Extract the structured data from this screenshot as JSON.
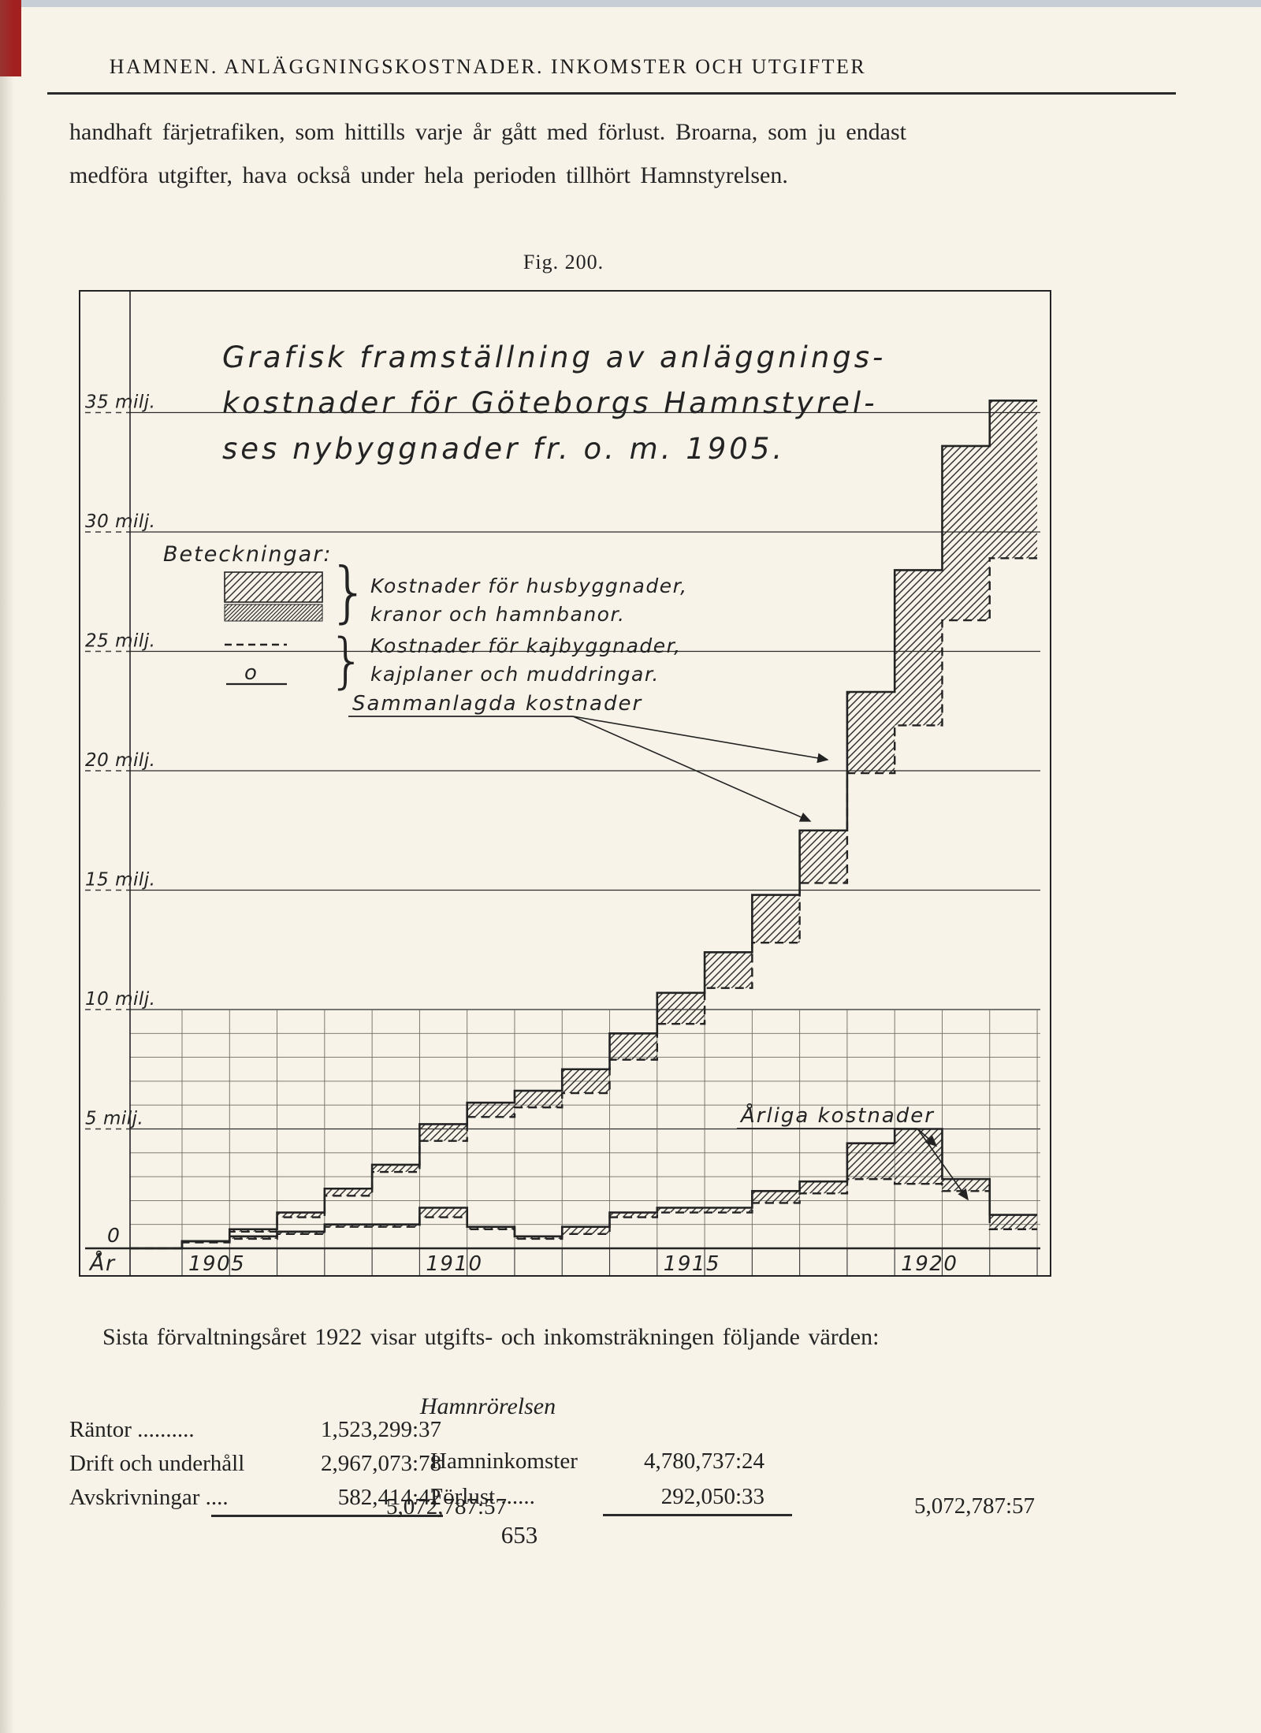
{
  "colors": {
    "paper": "#f7f3e8",
    "ink": "#232323",
    "scan_red_stripe": "#a22020",
    "scan_top_sliver": "#c7ced6"
  },
  "page": {
    "header": "HAMNEN.  ANLÄGGNINGSKOSTNADER.  INKOMSTER OCH UTGIFTER",
    "paragraph": "handhaft färjetrafiken, som hittills varje år gått med förlust.  Broarna, som ju endast medföra utgifter, hava också under hela perioden tillhört Hamnstyrelsen.",
    "fig_caption": "Fig.  200.",
    "closing_paragraph": "Sista förvaltningsåret 1922 visar utgifts- och inkomsträkningen följande värden:",
    "section_heading": "Hamnrörelsen",
    "page_number": "653"
  },
  "financials": {
    "left": {
      "rows": [
        {
          "label": "Räntor ..........",
          "value": "1,523,299:37"
        },
        {
          "label": "Drift och underhåll",
          "value": "2,967,073:78"
        },
        {
          "label": "Avskrivningar ....",
          "value": "582,414:42"
        }
      ],
      "total": "5,072,787:57"
    },
    "right": {
      "rows": [
        {
          "label": "Hamninkomster",
          "value": "4,780,737:24"
        },
        {
          "label": "Förlust ......",
          "value": "292,050:33"
        }
      ],
      "total": "5,072,787:57"
    }
  },
  "chart_data": {
    "type": "area",
    "title_lines": [
      "Grafisk framställning av anläggnings-",
      "kostnader för Göteborgs Hamnstyrel-",
      "ses nybyggnader fr. o. m. 1905."
    ],
    "legend": {
      "heading": "Beteckningar:",
      "item1_lines": [
        "Kostnader för husbyggnader,",
        "kranor och hamnbanor."
      ],
      "item1_symbol": "hatched-area",
      "item2_lines": [
        "Kostnader för kajbyggnader,",
        "kajplaner och muddringar."
      ],
      "item2_symbol": "dashed-line-and-o"
    },
    "annotations": {
      "cumulative": "Sammanlagda kostnader",
      "annual": "Årliga kostnader"
    },
    "xlabel": "År",
    "x_tick_labels": [
      "1905",
      "1910",
      "1915",
      "1920"
    ],
    "x_tick_years": [
      1905,
      1910,
      1915,
      1920
    ],
    "years": [
      1905,
      1906,
      1907,
      1908,
      1909,
      1910,
      1911,
      1912,
      1913,
      1914,
      1915,
      1916,
      1917,
      1918,
      1919,
      1920,
      1921,
      1922
    ],
    "y_unit": "milj. kr",
    "y_ticks": [
      {
        "v": 35,
        "label": "35 milj."
      },
      {
        "v": 30,
        "label": "30 milj."
      },
      {
        "v": 25,
        "label": "25 milj."
      },
      {
        "v": 20,
        "label": "20 milj."
      },
      {
        "v": 15,
        "label": "15 milj."
      },
      {
        "v": 10,
        "label": "10 milj."
      },
      {
        "v": 5,
        "label": "5 milj."
      }
    ],
    "y_minor_ticks": [
      1,
      2,
      3,
      4,
      6,
      7,
      8,
      9
    ],
    "zero_label": "0",
    "ylim": [
      0,
      37
    ],
    "series": [
      {
        "name": "Sammanlagda kostnader, totalt (heldragen linje, övre gräns av streckat fält)",
        "style": "solid-step",
        "values": [
          0.3,
          0.8,
          1.5,
          2.5,
          3.5,
          5.2,
          6.1,
          6.6,
          7.5,
          9.0,
          10.7,
          12.4,
          14.8,
          17.5,
          23.3,
          28.4,
          33.6,
          35.5
        ]
      },
      {
        "name": "Sammanlagda kostnader för kajbyggnader, kajplaner och muddringar (streckad linje)",
        "style": "dashed-step",
        "values": [
          0.25,
          0.7,
          1.3,
          2.2,
          3.2,
          4.5,
          5.5,
          5.9,
          6.5,
          7.9,
          9.4,
          10.9,
          12.8,
          15.3,
          19.9,
          21.9,
          26.3,
          28.9
        ]
      },
      {
        "name": "Årliga kostnader, totalt (heldragen linje)",
        "style": "solid-step",
        "values": [
          0.3,
          0.5,
          0.7,
          1.0,
          1.0,
          1.7,
          0.9,
          0.5,
          0.9,
          1.5,
          1.7,
          1.7,
          2.4,
          2.8,
          4.4,
          5.0,
          2.9,
          1.4
        ]
      },
      {
        "name": "Årliga kostnader för kajbyggnader, kajplaner och muddringar (streckad linje)",
        "style": "dashed-step",
        "values": [
          0.25,
          0.4,
          0.6,
          0.9,
          0.9,
          1.3,
          0.8,
          0.4,
          0.6,
          1.3,
          1.5,
          1.5,
          1.9,
          2.3,
          2.9,
          2.7,
          2.4,
          0.8
        ]
      }
    ],
    "notes": "Fält mellan heldragen och streckad linje är snedstreckat (kostnader för husbyggnader, kranor och hamnbanor). Värden avlästa ur diagrammet, milj. kr."
  }
}
